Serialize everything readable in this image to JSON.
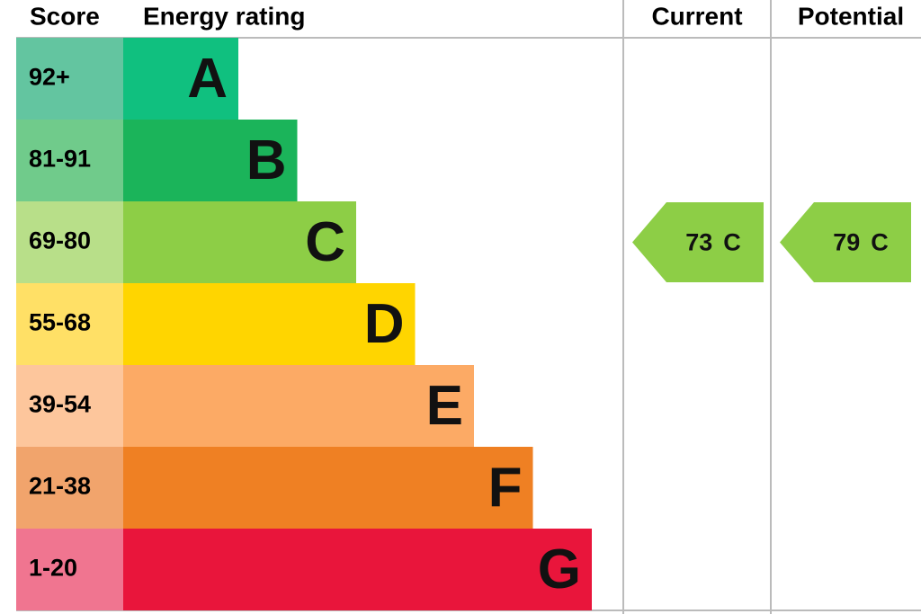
{
  "header": {
    "score": "Score",
    "rating": "Energy rating",
    "current": "Current",
    "potential": "Potential"
  },
  "bands": [
    {
      "score": "92+",
      "letter": "A",
      "color": "#10c07f",
      "score_color": "#63c5a0"
    },
    {
      "score": "81-91",
      "letter": "B",
      "color": "#1bb45a",
      "score_color": "#70cb8b"
    },
    {
      "score": "69-80",
      "letter": "C",
      "color": "#8dce46",
      "score_color": "#b8df89"
    },
    {
      "score": "55-68",
      "letter": "D",
      "color": "#ffd500",
      "score_color": "#ffe066"
    },
    {
      "score": "39-54",
      "letter": "E",
      "color": "#fcaa65",
      "score_color": "#fdc69c"
    },
    {
      "score": "21-38",
      "letter": "F",
      "color": "#ef8023",
      "score_color": "#f1a46c"
    },
    {
      "score": "1-20",
      "letter": "G",
      "color": "#e9153b",
      "score_color": "#f07590"
    }
  ],
  "current": {
    "value": 73,
    "letter": "C",
    "color": "#8dce46"
  },
  "potential": {
    "value": 79,
    "letter": "C",
    "color": "#8dce46"
  }
}
